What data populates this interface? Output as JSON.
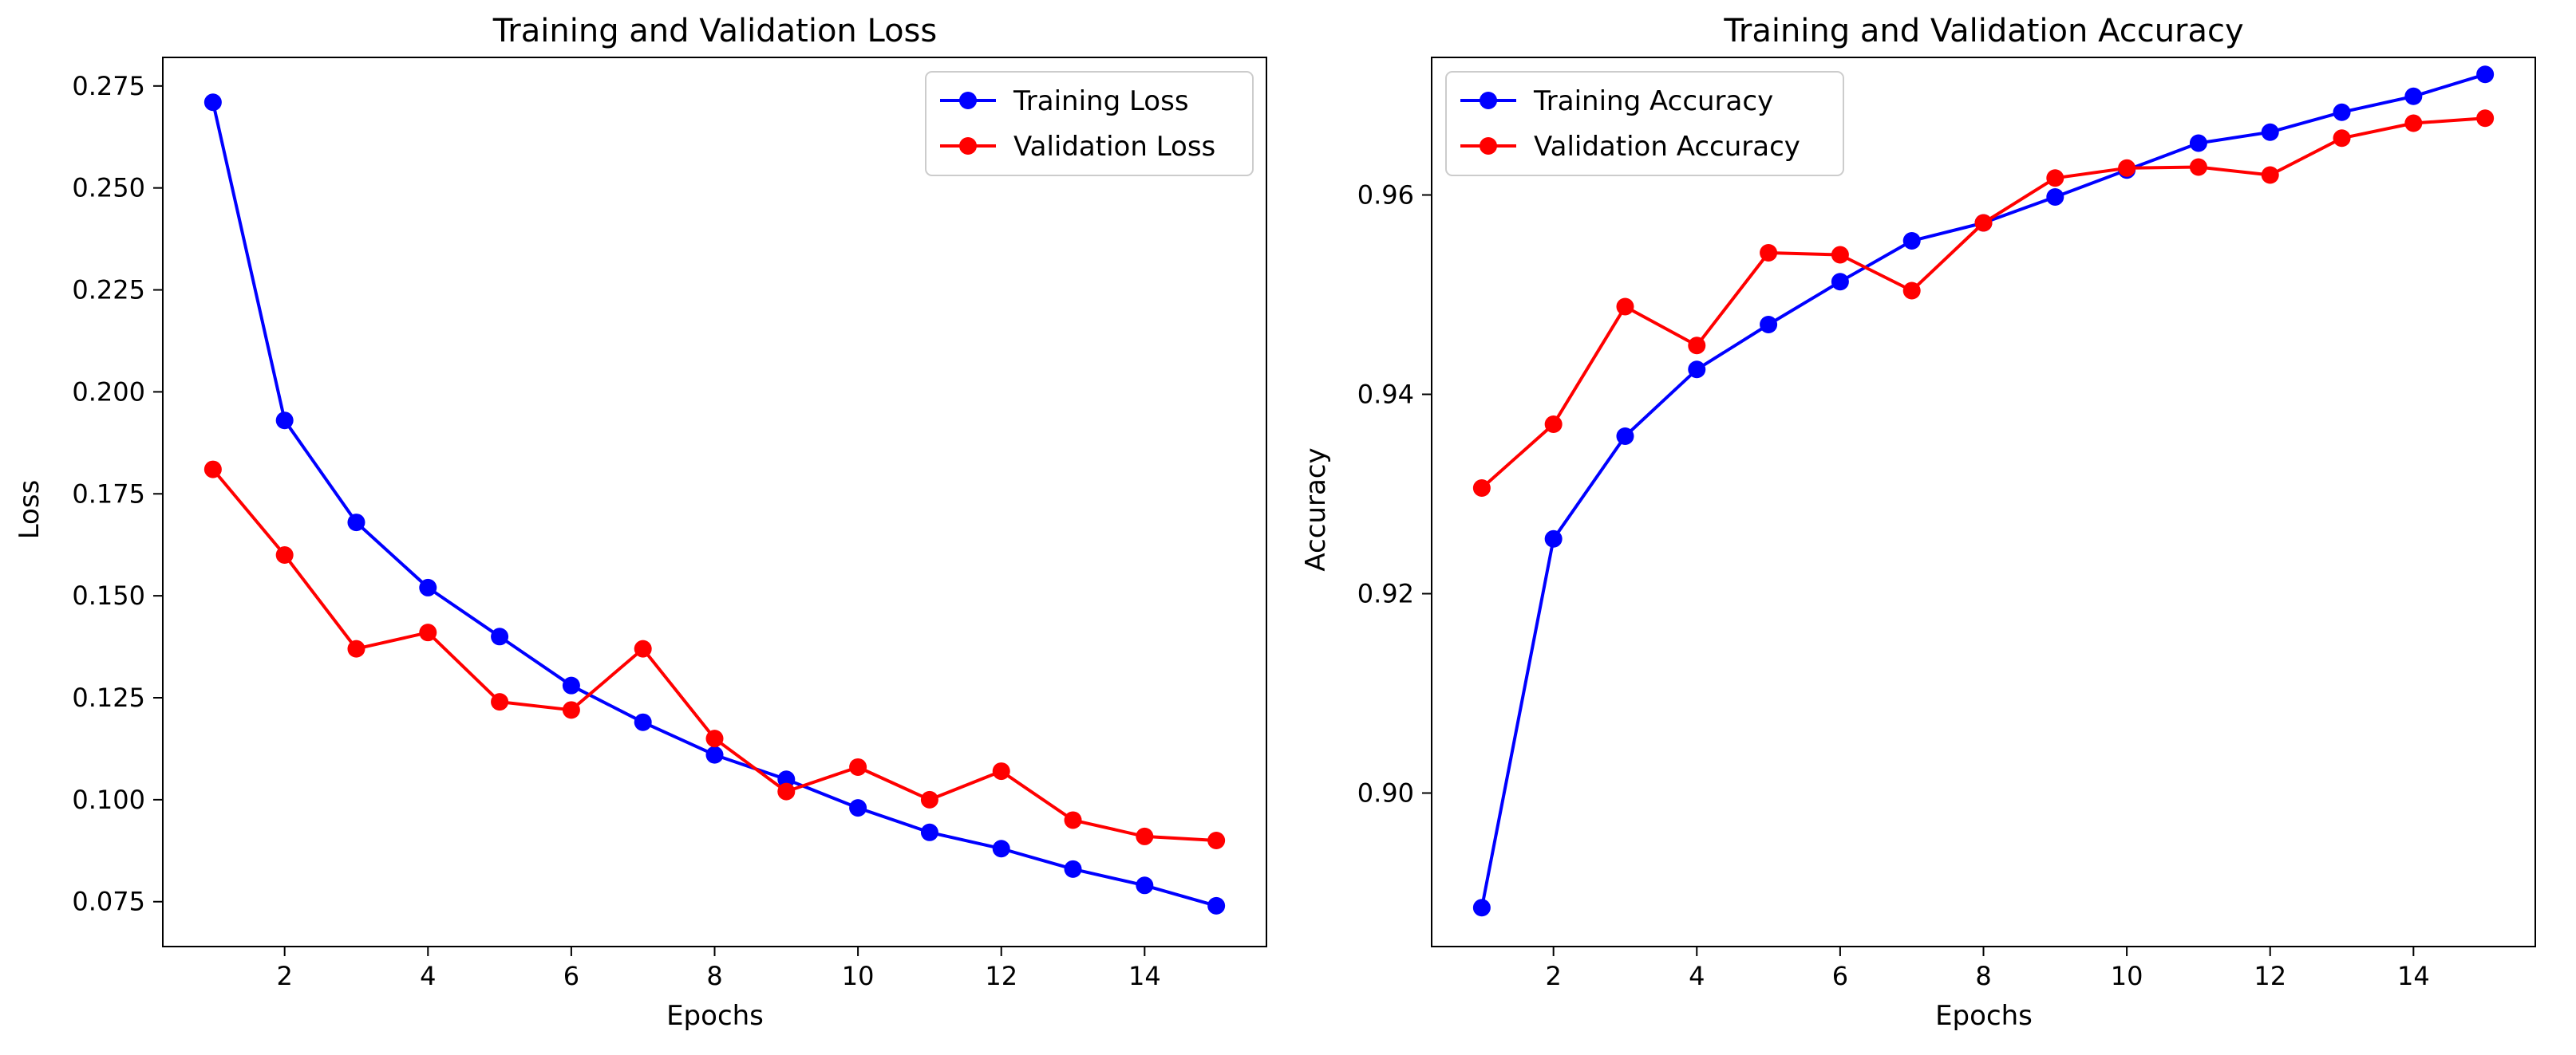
{
  "colors": {
    "training": "#0000ff",
    "validation": "#ff0000",
    "axes": "#000000",
    "background": "#ffffff"
  },
  "chart_data": [
    {
      "type": "line",
      "title": "Training and Validation Loss",
      "xlabel": "Epochs",
      "ylabel": "Loss",
      "xlim": [
        0.3,
        15.7
      ],
      "ylim": [
        0.064,
        0.282
      ],
      "xticks": [
        2,
        4,
        6,
        8,
        10,
        12,
        14
      ],
      "xtick_labels": [
        "2",
        "4",
        "6",
        "8",
        "10",
        "12",
        "14"
      ],
      "yticks": [
        0.075,
        0.1,
        0.125,
        0.15,
        0.175,
        0.2,
        0.225,
        0.25,
        0.275
      ],
      "ytick_labels": [
        "0.075",
        "0.100",
        "0.125",
        "0.150",
        "0.175",
        "0.200",
        "0.225",
        "0.250",
        "0.275"
      ],
      "legend_position": "top-right",
      "x": [
        1,
        2,
        3,
        4,
        5,
        6,
        7,
        8,
        9,
        10,
        11,
        12,
        13,
        14,
        15
      ],
      "series": [
        {
          "name": "Training Loss",
          "color": "#0000ff",
          "values": [
            0.271,
            0.193,
            0.168,
            0.152,
            0.14,
            0.128,
            0.119,
            0.111,
            0.105,
            0.098,
            0.092,
            0.088,
            0.083,
            0.079,
            0.074
          ]
        },
        {
          "name": "Validation Loss",
          "color": "#ff0000",
          "values": [
            0.181,
            0.16,
            0.137,
            0.141,
            0.124,
            0.122,
            0.137,
            0.115,
            0.102,
            0.108,
            0.1,
            0.107,
            0.095,
            0.091,
            0.09
          ]
        }
      ]
    },
    {
      "type": "line",
      "title": "Training and Validation Accuracy",
      "xlabel": "Epochs",
      "ylabel": "Accuracy",
      "xlim": [
        0.3,
        15.7
      ],
      "ylim": [
        0.8846,
        0.9738
      ],
      "xticks": [
        2,
        4,
        6,
        8,
        10,
        12,
        14
      ],
      "xtick_labels": [
        "2",
        "4",
        "6",
        "8",
        "10",
        "12",
        "14"
      ],
      "yticks": [
        0.9,
        0.92,
        0.94,
        0.96
      ],
      "ytick_labels": [
        "0.90",
        "0.92",
        "0.94",
        "0.96"
      ],
      "legend_position": "top-left",
      "x": [
        1,
        2,
        3,
        4,
        5,
        6,
        7,
        8,
        9,
        10,
        11,
        12,
        13,
        14,
        15
      ],
      "series": [
        {
          "name": "Training Accuracy",
          "color": "#0000ff",
          "values": [
            0.8885,
            0.9255,
            0.9358,
            0.9425,
            0.947,
            0.9513,
            0.9554,
            0.9572,
            0.9598,
            0.9625,
            0.9652,
            0.9663,
            0.9683,
            0.9699,
            0.9721
          ]
        },
        {
          "name": "Validation Accuracy",
          "color": "#ff0000",
          "values": [
            0.9306,
            0.937,
            0.9488,
            0.9449,
            0.9542,
            0.954,
            0.9504,
            0.9572,
            0.9617,
            0.9627,
            0.9628,
            0.962,
            0.9657,
            0.9672,
            0.9677
          ]
        }
      ]
    }
  ]
}
